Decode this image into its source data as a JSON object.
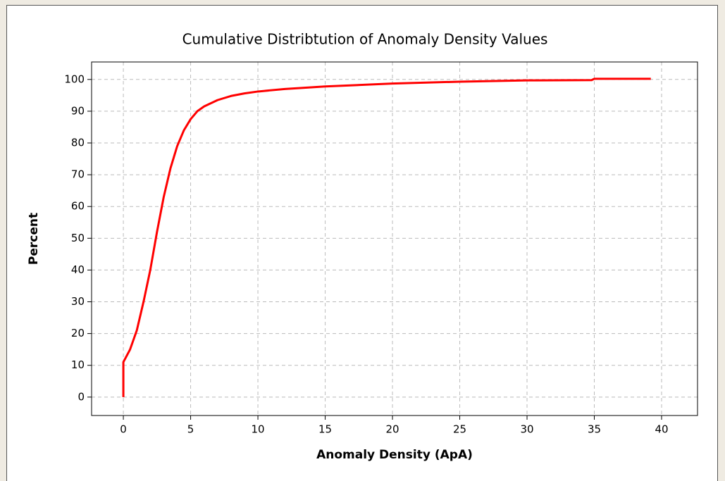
{
  "chart_data": {
    "type": "line",
    "title": "Cumulative Distribtution of Anomaly Density Values",
    "x_label": "Anomaly Density (ApA)",
    "y_label": "Percent",
    "x": [
      0,
      0,
      0.5,
      1,
      1.5,
      2,
      2.5,
      3,
      3.5,
      4,
      4.5,
      5,
      5.5,
      6,
      7,
      8,
      9,
      10,
      12,
      15,
      20,
      25,
      30,
      34.8,
      35,
      39.2
    ],
    "values": [
      0,
      11,
      15,
      21,
      30,
      40,
      52,
      63,
      72,
      79,
      84,
      87.5,
      90,
      91.5,
      93.5,
      94.8,
      95.6,
      96.2,
      97,
      97.8,
      98.7,
      99.3,
      99.7,
      99.8,
      100.2,
      100.2
    ],
    "color": "#ff0000",
    "xlim": [
      -2.36,
      42.67
    ],
    "ylim": [
      -5.8,
      105.5
    ],
    "xticks": [
      0,
      5,
      10,
      15,
      20,
      25,
      30,
      35,
      40
    ],
    "yticks": [
      0,
      10,
      20,
      30,
      40,
      50,
      60,
      70,
      80,
      90,
      100
    ],
    "grid": true
  }
}
